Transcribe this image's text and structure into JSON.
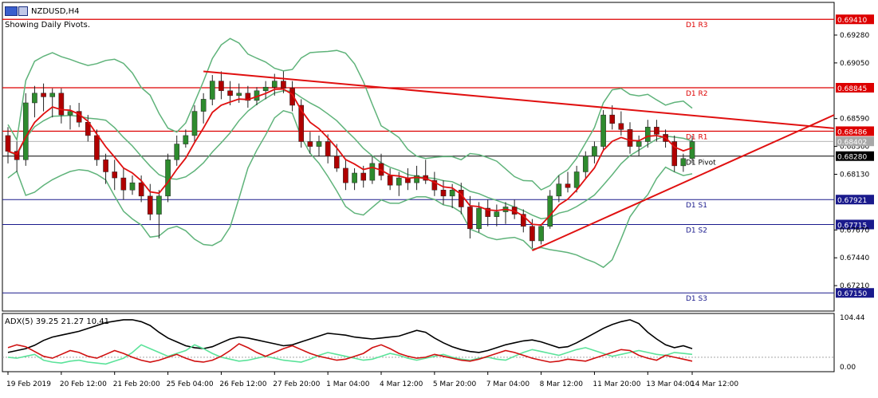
{
  "header": {
    "symbol": "NZDUSD,H4",
    "note": "Showing Daily Pivots."
  },
  "colors": {
    "candle_up": "#2e8b2e",
    "candle_down": "#b00000",
    "bollinger": "#5fb37a",
    "ema": "#e01010",
    "pivot_red": "#dd0000",
    "pivot_blue": "#1a1a8c",
    "trendline": "#e01010",
    "adx_main": "#000000",
    "adx_plus": "#5be39a",
    "adx_minus": "#d01010",
    "grid": "#000000"
  },
  "chart_data": [
    {
      "type": "candlestick",
      "title": "NZDUSD,H4",
      "ylim": [
        0.67,
        0.6955
      ],
      "x_tick_labels": [
        "19 Feb 2019",
        "20 Feb 12:00",
        "21 Feb 20:00",
        "25 Feb 04:00",
        "26 Feb 12:00",
        "27 Feb 20:00",
        "1 Mar 04:00",
        "4 Mar 12:00",
        "5 Mar 20:00",
        "7 Mar 04:00",
        "8 Mar 12:00",
        "11 Mar 20:00",
        "13 Mar 04:00",
        "14 Mar 12:00"
      ],
      "y_tick_labels": [
        "0.69280",
        "0.69050",
        "0.68590",
        "0.68360",
        "0.68130",
        "0.67670",
        "0.67440",
        "0.67210"
      ],
      "y_ticks": [
        0.6928,
        0.6905,
        0.6859,
        0.6836,
        0.6813,
        0.6767,
        0.6744,
        0.6721
      ],
      "pivots": [
        {
          "label": "D1 R3",
          "value": 0.6941,
          "value_label": "0.69410",
          "color": "red"
        },
        {
          "label": "D1 R2",
          "value": 0.68845,
          "value_label": "0.68845",
          "color": "red"
        },
        {
          "label": "D1 R1",
          "value": 0.68486,
          "value_label": "0.68486",
          "color": "red"
        },
        {
          "label": "D1 Pivot",
          "value": 0.6828,
          "value_label": "0.68280",
          "color": "black"
        },
        {
          "label": "D1 S1",
          "value": 0.67921,
          "value_label": "0.67921",
          "color": "blue"
        },
        {
          "label": "D1 S2",
          "value": 0.67715,
          "value_label": "0.67715",
          "color": "blue"
        },
        {
          "label": "D1 S3",
          "value": 0.6715,
          "value_label": "0.67150",
          "color": "blue"
        }
      ],
      "current_price": 0.68402,
      "current_price_label": "0.68402",
      "candles": [
        {
          "o": 0.6845,
          "h": 0.6852,
          "l": 0.6822,
          "c": 0.6832
        },
        {
          "o": 0.6832,
          "h": 0.684,
          "l": 0.6815,
          "c": 0.6825
        },
        {
          "o": 0.6825,
          "h": 0.688,
          "l": 0.682,
          "c": 0.6872
        },
        {
          "o": 0.6872,
          "h": 0.6886,
          "l": 0.686,
          "c": 0.688
        },
        {
          "o": 0.688,
          "h": 0.6888,
          "l": 0.6865,
          "c": 0.6877
        },
        {
          "o": 0.6877,
          "h": 0.6884,
          "l": 0.686,
          "c": 0.688
        },
        {
          "o": 0.688,
          "h": 0.6884,
          "l": 0.6855,
          "c": 0.6862
        },
        {
          "o": 0.6862,
          "h": 0.687,
          "l": 0.685,
          "c": 0.6865
        },
        {
          "o": 0.6865,
          "h": 0.6872,
          "l": 0.6852,
          "c": 0.6856
        },
        {
          "o": 0.6856,
          "h": 0.6862,
          "l": 0.684,
          "c": 0.6845
        },
        {
          "o": 0.6845,
          "h": 0.685,
          "l": 0.682,
          "c": 0.6825
        },
        {
          "o": 0.6825,
          "h": 0.683,
          "l": 0.6805,
          "c": 0.6815
        },
        {
          "o": 0.6815,
          "h": 0.6825,
          "l": 0.68,
          "c": 0.681
        },
        {
          "o": 0.681,
          "h": 0.6818,
          "l": 0.6792,
          "c": 0.68
        },
        {
          "o": 0.68,
          "h": 0.6812,
          "l": 0.6796,
          "c": 0.6806
        },
        {
          "o": 0.6806,
          "h": 0.6812,
          "l": 0.679,
          "c": 0.6795
        },
        {
          "o": 0.6795,
          "h": 0.6805,
          "l": 0.6775,
          "c": 0.678
        },
        {
          "o": 0.678,
          "h": 0.68,
          "l": 0.676,
          "c": 0.6795
        },
        {
          "o": 0.6795,
          "h": 0.683,
          "l": 0.679,
          "c": 0.6825
        },
        {
          "o": 0.6825,
          "h": 0.6845,
          "l": 0.682,
          "c": 0.6838
        },
        {
          "o": 0.6838,
          "h": 0.685,
          "l": 0.6835,
          "c": 0.6845
        },
        {
          "o": 0.6845,
          "h": 0.687,
          "l": 0.684,
          "c": 0.6865
        },
        {
          "o": 0.6865,
          "h": 0.688,
          "l": 0.6855,
          "c": 0.6875
        },
        {
          "o": 0.6875,
          "h": 0.6895,
          "l": 0.687,
          "c": 0.689
        },
        {
          "o": 0.689,
          "h": 0.6898,
          "l": 0.6875,
          "c": 0.6882
        },
        {
          "o": 0.6882,
          "h": 0.689,
          "l": 0.687,
          "c": 0.6878
        },
        {
          "o": 0.6878,
          "h": 0.6888,
          "l": 0.6872,
          "c": 0.688
        },
        {
          "o": 0.688,
          "h": 0.6886,
          "l": 0.6868,
          "c": 0.6874
        },
        {
          "o": 0.6874,
          "h": 0.6885,
          "l": 0.687,
          "c": 0.6882
        },
        {
          "o": 0.6882,
          "h": 0.689,
          "l": 0.6875,
          "c": 0.6885
        },
        {
          "o": 0.6885,
          "h": 0.6896,
          "l": 0.6878,
          "c": 0.689
        },
        {
          "o": 0.689,
          "h": 0.6898,
          "l": 0.688,
          "c": 0.6884
        },
        {
          "o": 0.6884,
          "h": 0.689,
          "l": 0.6865,
          "c": 0.687
        },
        {
          "o": 0.687,
          "h": 0.6875,
          "l": 0.6835,
          "c": 0.684
        },
        {
          "o": 0.684,
          "h": 0.6848,
          "l": 0.683,
          "c": 0.6836
        },
        {
          "o": 0.6836,
          "h": 0.6845,
          "l": 0.6828,
          "c": 0.684
        },
        {
          "o": 0.684,
          "h": 0.6846,
          "l": 0.6822,
          "c": 0.6828
        },
        {
          "o": 0.6828,
          "h": 0.6838,
          "l": 0.6815,
          "c": 0.6818
        },
        {
          "o": 0.6818,
          "h": 0.6825,
          "l": 0.68,
          "c": 0.6806
        },
        {
          "o": 0.6806,
          "h": 0.6818,
          "l": 0.68,
          "c": 0.6814
        },
        {
          "o": 0.6814,
          "h": 0.682,
          "l": 0.6802,
          "c": 0.6808
        },
        {
          "o": 0.6808,
          "h": 0.6828,
          "l": 0.6805,
          "c": 0.6822
        },
        {
          "o": 0.6822,
          "h": 0.683,
          "l": 0.6808,
          "c": 0.6812
        },
        {
          "o": 0.6812,
          "h": 0.6818,
          "l": 0.68,
          "c": 0.6804
        },
        {
          "o": 0.6804,
          "h": 0.6815,
          "l": 0.6795,
          "c": 0.681
        },
        {
          "o": 0.681,
          "h": 0.6818,
          "l": 0.68,
          "c": 0.6806
        },
        {
          "o": 0.6806,
          "h": 0.682,
          "l": 0.68,
          "c": 0.6812
        },
        {
          "o": 0.6812,
          "h": 0.6825,
          "l": 0.6805,
          "c": 0.6808
        },
        {
          "o": 0.6808,
          "h": 0.6815,
          "l": 0.6795,
          "c": 0.68
        },
        {
          "o": 0.68,
          "h": 0.6808,
          "l": 0.6788,
          "c": 0.6795
        },
        {
          "o": 0.6795,
          "h": 0.6805,
          "l": 0.6785,
          "c": 0.68
        },
        {
          "o": 0.68,
          "h": 0.6806,
          "l": 0.678,
          "c": 0.6786
        },
        {
          "o": 0.6786,
          "h": 0.6795,
          "l": 0.676,
          "c": 0.6768
        },
        {
          "o": 0.6768,
          "h": 0.679,
          "l": 0.6765,
          "c": 0.6785
        },
        {
          "o": 0.6785,
          "h": 0.6792,
          "l": 0.677,
          "c": 0.6778
        },
        {
          "o": 0.6778,
          "h": 0.6788,
          "l": 0.677,
          "c": 0.6782
        },
        {
          "o": 0.6782,
          "h": 0.679,
          "l": 0.6772,
          "c": 0.6786
        },
        {
          "o": 0.6786,
          "h": 0.6792,
          "l": 0.6776,
          "c": 0.678
        },
        {
          "o": 0.678,
          "h": 0.6784,
          "l": 0.6765,
          "c": 0.677
        },
        {
          "o": 0.677,
          "h": 0.6776,
          "l": 0.6752,
          "c": 0.6758
        },
        {
          "o": 0.6758,
          "h": 0.6772,
          "l": 0.6755,
          "c": 0.677
        },
        {
          "o": 0.677,
          "h": 0.68,
          "l": 0.6768,
          "c": 0.6795
        },
        {
          "o": 0.6795,
          "h": 0.6812,
          "l": 0.679,
          "c": 0.6805
        },
        {
          "o": 0.6805,
          "h": 0.6815,
          "l": 0.6798,
          "c": 0.6802
        },
        {
          "o": 0.6802,
          "h": 0.682,
          "l": 0.6798,
          "c": 0.6815
        },
        {
          "o": 0.6815,
          "h": 0.6832,
          "l": 0.681,
          "c": 0.6828
        },
        {
          "o": 0.6828,
          "h": 0.684,
          "l": 0.6822,
          "c": 0.6836
        },
        {
          "o": 0.6836,
          "h": 0.6866,
          "l": 0.6832,
          "c": 0.6862
        },
        {
          "o": 0.6862,
          "h": 0.687,
          "l": 0.685,
          "c": 0.6855
        },
        {
          "o": 0.6855,
          "h": 0.6865,
          "l": 0.6845,
          "c": 0.685
        },
        {
          "o": 0.685,
          "h": 0.6856,
          "l": 0.683,
          "c": 0.6836
        },
        {
          "o": 0.6836,
          "h": 0.6845,
          "l": 0.6828,
          "c": 0.684
        },
        {
          "o": 0.684,
          "h": 0.6858,
          "l": 0.6835,
          "c": 0.6852
        },
        {
          "o": 0.6852,
          "h": 0.6858,
          "l": 0.684,
          "c": 0.6846
        },
        {
          "o": 0.6846,
          "h": 0.685,
          "l": 0.6835,
          "c": 0.684
        },
        {
          "o": 0.684,
          "h": 0.6845,
          "l": 0.6815,
          "c": 0.682
        },
        {
          "o": 0.682,
          "h": 0.683,
          "l": 0.6815,
          "c": 0.6826
        },
        {
          "o": 0.6826,
          "h": 0.6845,
          "l": 0.6822,
          "c": 0.684
        }
      ],
      "x_tick_positions_index": [
        0,
        6,
        12,
        18,
        24,
        30,
        36,
        42,
        48,
        54,
        60,
        66,
        72,
        77
      ]
    },
    {
      "type": "line",
      "title": "ADX(5) 39.25 21.27 10.41",
      "ylim": [
        0,
        104.44
      ],
      "y_tick_labels": [
        "104.44",
        "0.00"
      ],
      "series": [
        {
          "name": "ADX",
          "values": [
            30,
            34,
            38,
            45,
            55,
            62,
            66,
            70,
            74,
            80,
            86,
            92,
            95,
            98,
            98,
            94,
            86,
            72,
            60,
            52,
            44,
            40,
            38,
            42,
            50,
            58,
            62,
            60,
            56,
            52,
            48,
            44,
            46,
            52,
            58,
            64,
            70,
            68,
            66,
            62,
            60,
            58,
            60,
            62,
            64,
            70,
            76,
            72,
            60,
            50,
            42,
            36,
            32,
            30,
            34,
            40,
            46,
            50,
            54,
            56,
            52,
            46,
            40,
            42,
            50,
            60,
            70,
            80,
            88,
            94,
            98,
            90,
            72,
            58,
            46,
            40,
            44,
            38
          ]
        },
        {
          "name": "+DI",
          "values": [
            20,
            18,
            22,
            26,
            14,
            10,
            8,
            12,
            14,
            10,
            8,
            6,
            12,
            18,
            30,
            46,
            38,
            30,
            22,
            28,
            34,
            46,
            38,
            28,
            20,
            16,
            12,
            14,
            18,
            22,
            18,
            14,
            12,
            10,
            16,
            24,
            30,
            26,
            22,
            18,
            14,
            16,
            22,
            28,
            24,
            18,
            14,
            18,
            22,
            26,
            20,
            16,
            14,
            18,
            20,
            16,
            14,
            22,
            30,
            36,
            32,
            28,
            24,
            30,
            36,
            40,
            34,
            28,
            22,
            26,
            30,
            34,
            30,
            26,
            24,
            30,
            28,
            26
          ]
        },
        {
          "name": "-DI",
          "values": [
            40,
            46,
            42,
            32,
            22,
            18,
            26,
            34,
            30,
            22,
            18,
            26,
            34,
            28,
            20,
            14,
            10,
            14,
            20,
            26,
            18,
            12,
            10,
            14,
            22,
            34,
            48,
            40,
            30,
            22,
            30,
            38,
            44,
            36,
            28,
            22,
            18,
            14,
            16,
            22,
            28,
            40,
            46,
            38,
            28,
            22,
            18,
            20,
            26,
            22,
            18,
            14,
            12,
            16,
            22,
            28,
            34,
            30,
            24,
            18,
            14,
            10,
            12,
            16,
            14,
            12,
            18,
            24,
            30,
            36,
            34,
            24,
            18,
            14,
            24,
            20,
            16,
            12
          ]
        }
      ]
    }
  ]
}
